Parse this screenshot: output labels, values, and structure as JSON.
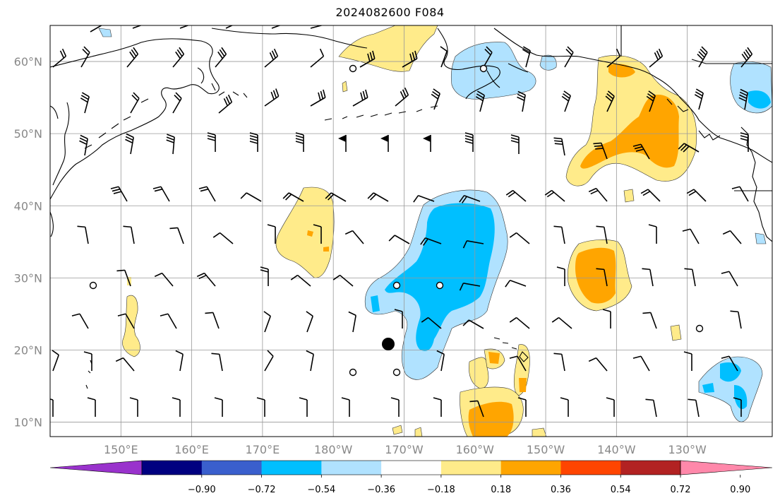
{
  "title": "2024082600 F084",
  "map": {
    "lat_labels": [
      "60°N",
      "50°N",
      "40°N",
      "30°N",
      "20°N",
      "10°N"
    ],
    "lon_labels": [
      "150°E",
      "160°E",
      "170°E",
      "180°W",
      "170°W",
      "160°W",
      "150°W",
      "140°W",
      "130°W"
    ],
    "lat_ticks": [
      60,
      50,
      40,
      30,
      20,
      10
    ],
    "lon_ticks": [
      150,
      160,
      170,
      180,
      190,
      200,
      210,
      220,
      230
    ],
    "extent": {
      "lon_min": 140,
      "lon_max": 242,
      "lat_min": 8,
      "lat_max": 65
    },
    "gridlines": true
  },
  "colorbar": {
    "ticks": [
      "−0.90",
      "−0.72",
      "−0.54",
      "−0.36",
      "−0.18",
      "0.18",
      "0.36",
      "0.54",
      "0.72",
      "0.90"
    ],
    "colors": [
      "#9932cc",
      "#000080",
      "#3a5fcd",
      "#00bfff",
      "#b0e2ff",
      "#ffffff",
      "#ffeb8a",
      "#ffa500",
      "#ff4500",
      "#b22222",
      "#ff88aa"
    ],
    "extend": "both"
  },
  "icons": {
    "wind_barb": "wind-barb-icon",
    "calm": "calm-circle-icon",
    "marker": "center-dot-icon"
  }
}
